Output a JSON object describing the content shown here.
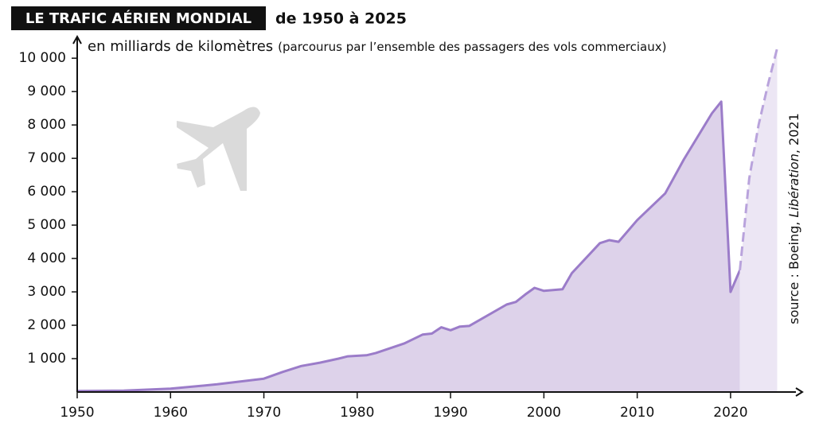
{
  "chart_data": {
    "type": "area",
    "title": "LE TRAFIC AÉRIEN MONDIAL",
    "subtitle": "de 1950 à 2025",
    "y_label": "en milliards de kilomètres",
    "y_label_note": "(parcourus par l’ensemble des passagers des vols commerciaux)",
    "source": [
      "source : Boeing, ",
      "Libération",
      ", 2021"
    ],
    "x": [
      1950,
      1955,
      1960,
      1965,
      1970,
      1972,
      1974,
      1976,
      1978,
      1979,
      1981,
      1982,
      1985,
      1987,
      1988,
      1989,
      1990,
      1991,
      1992,
      1996,
      1997,
      1998,
      1999,
      2000,
      2002,
      2003,
      2006,
      2007,
      2008,
      2010,
      2013,
      2015,
      2018,
      2019,
      2020,
      2021,
      2022,
      2023,
      2024,
      2025
    ],
    "series": [
      {
        "color": "#9b7cc9",
        "fill": "#ddd2ea",
        "style": "solid",
        "values": [
          28,
          40,
          100,
          230,
          400,
          600,
          780,
          880,
          1000,
          1070,
          1100,
          1170,
          1450,
          1720,
          1750,
          1940,
          1850,
          1960,
          1980,
          2620,
          2700,
          2920,
          3120,
          3030,
          3080,
          3560,
          4460,
          4550,
          4500,
          5150,
          5950,
          6970,
          8350,
          8700,
          3000,
          3650,
          null,
          null,
          null,
          null
        ]
      },
      {
        "color": "#b9a3dc",
        "fill": "#ece6f4",
        "style": "dashed",
        "values": [
          null,
          null,
          null,
          null,
          null,
          null,
          null,
          null,
          null,
          null,
          null,
          null,
          null,
          null,
          null,
          null,
          null,
          null,
          null,
          null,
          null,
          null,
          null,
          null,
          null,
          null,
          null,
          null,
          null,
          null,
          null,
          null,
          null,
          null,
          null,
          3650,
          6400,
          8000,
          9200,
          10300
        ]
      }
    ],
    "xlim": [
      1950,
      2027
    ],
    "ylim": [
      0,
      10600
    ],
    "xticks": [
      1950,
      1960,
      1970,
      1980,
      1990,
      2000,
      2010,
      2020
    ],
    "yticks": [
      {
        "value": 1000,
        "label": "1 000"
      },
      {
        "value": 2000,
        "label": "2 000"
      },
      {
        "value": 3000,
        "label": "3 000"
      },
      {
        "value": 4000,
        "label": "4 000"
      },
      {
        "value": 5000,
        "label": "5 000"
      },
      {
        "value": 6000,
        "label": "6 000"
      },
      {
        "value": 7000,
        "label": "7 000"
      },
      {
        "value": 8000,
        "label": "8 000"
      },
      {
        "value": 9000,
        "label": "9 000"
      },
      {
        "value": 10000,
        "label": "10 000"
      }
    ]
  }
}
